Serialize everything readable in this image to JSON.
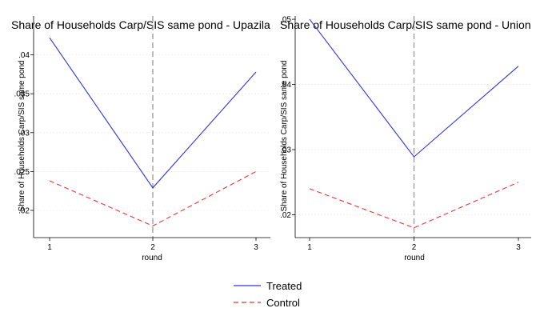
{
  "chart_data": [
    {
      "type": "line",
      "title": "Share of Households Carp/SIS same pond - Upazila",
      "xlabel": "round",
      "ylabel": "Share of Households Carp/SIS same pond",
      "x": [
        1,
        2,
        3
      ],
      "x_ticks": [
        "1",
        "2",
        "3"
      ],
      "xlim": [
        1,
        3
      ],
      "ylim": [
        0.0165,
        0.045
      ],
      "y_ticks": [
        ".02",
        ".025",
        ".03",
        ".035",
        ".04"
      ],
      "y_tick_values": [
        0.02,
        0.025,
        0.03,
        0.035,
        0.04
      ],
      "reference_line_x": 2,
      "grid": true,
      "series": [
        {
          "name": "Treated",
          "values": [
            0.0422,
            0.0229,
            0.0378
          ],
          "color": "#3333dd",
          "style": "solid"
        },
        {
          "name": "Control",
          "values": [
            0.0238,
            0.018,
            0.025
          ],
          "color": "#ee3333",
          "style": "dashed"
        }
      ]
    },
    {
      "type": "line",
      "title": "Share of Households Carp/SIS same pond - Union",
      "xlabel": "round",
      "ylabel": "Share of Households Carp/SIS same pond",
      "x": [
        1,
        2,
        3
      ],
      "x_ticks": [
        "1",
        "2",
        "3"
      ],
      "xlim": [
        1,
        3
      ],
      "ylim": [
        0.0165,
        0.0505
      ],
      "y_ticks": [
        ".02",
        ".03",
        ".04",
        ".05"
      ],
      "y_tick_values": [
        0.02,
        0.03,
        0.04,
        0.05
      ],
      "reference_line_x": 2,
      "grid": true,
      "series": [
        {
          "name": "Treated",
          "values": [
            0.05,
            0.0289,
            0.0428
          ],
          "color": "#3333dd",
          "style": "solid"
        },
        {
          "name": "Control",
          "values": [
            0.024,
            0.018,
            0.025
          ],
          "color": "#ee3333",
          "style": "dashed"
        }
      ]
    }
  ],
  "legend": {
    "placement": "bottom-center",
    "items": [
      {
        "label": "Treated",
        "color": "#3333dd",
        "style": "solid"
      },
      {
        "label": "Control",
        "color": "#ee3333",
        "style": "dashed"
      }
    ]
  }
}
